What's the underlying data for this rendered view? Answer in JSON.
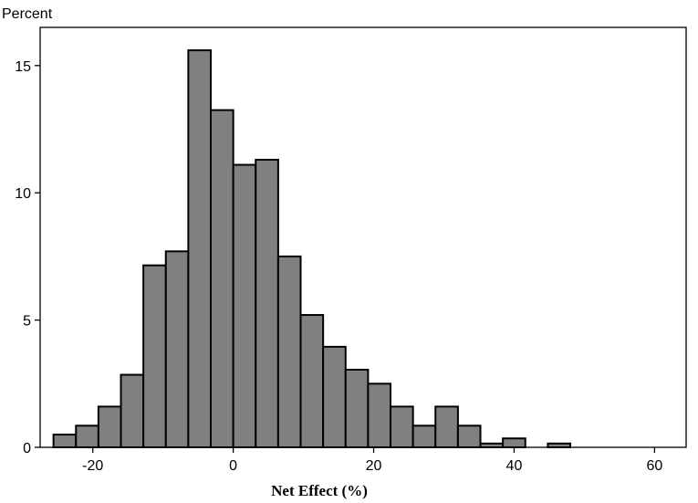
{
  "chart_data": {
    "type": "bar",
    "ylabel": "Percent",
    "xlabel": "Net Effect (%)",
    "bin_width": 3.2,
    "bins": [
      {
        "x_start": -25.6,
        "value": 0.5
      },
      {
        "x_start": -22.4,
        "value": 0.85
      },
      {
        "x_start": -19.2,
        "value": 1.6
      },
      {
        "x_start": -16.0,
        "value": 2.85
      },
      {
        "x_start": -12.8,
        "value": 7.15
      },
      {
        "x_start": -9.6,
        "value": 7.7
      },
      {
        "x_start": -6.4,
        "value": 15.6
      },
      {
        "x_start": -3.2,
        "value": 13.25
      },
      {
        "x_start": 0.0,
        "value": 11.1
      },
      {
        "x_start": 3.2,
        "value": 11.3
      },
      {
        "x_start": 6.4,
        "value": 7.5
      },
      {
        "x_start": 9.6,
        "value": 5.2
      },
      {
        "x_start": 12.8,
        "value": 3.95
      },
      {
        "x_start": 16.0,
        "value": 3.05
      },
      {
        "x_start": 19.2,
        "value": 2.5
      },
      {
        "x_start": 22.4,
        "value": 1.6
      },
      {
        "x_start": 25.6,
        "value": 0.85
      },
      {
        "x_start": 28.8,
        "value": 1.6
      },
      {
        "x_start": 32.0,
        "value": 0.85
      },
      {
        "x_start": 35.2,
        "value": 0.15
      },
      {
        "x_start": 38.4,
        "value": 0.35
      },
      {
        "x_start": 44.8,
        "value": 0.15
      }
    ],
    "xlim": [
      -27.5,
      64.5
    ],
    "ylim": [
      0,
      16.5
    ],
    "xticks": [
      -20,
      0,
      20,
      40,
      60
    ],
    "yticks": [
      0,
      5,
      10,
      15
    ],
    "grid": false,
    "colors": {
      "bar_fill": "#808080",
      "bar_edge": "#000000"
    }
  }
}
